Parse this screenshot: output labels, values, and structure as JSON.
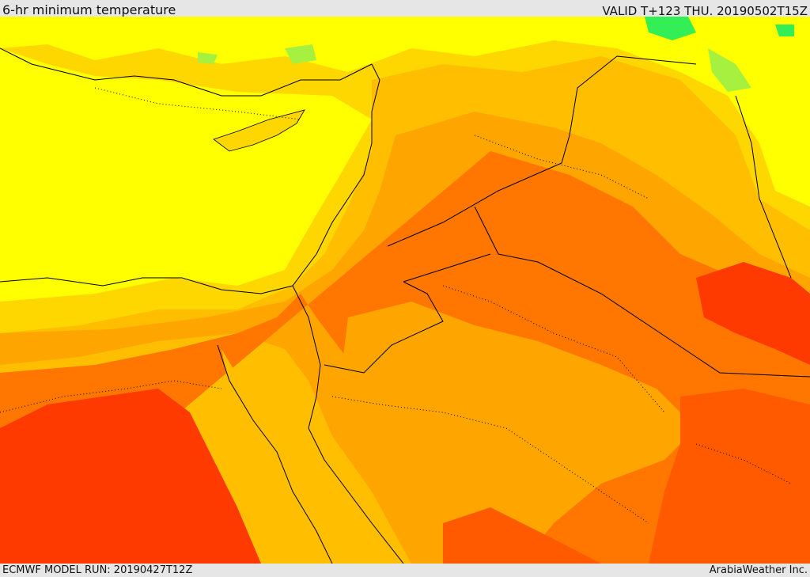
{
  "header": {
    "title": "6-hr minimum temperature",
    "valid": "VALID T+123 THU. 20190502T15Z"
  },
  "footer": {
    "model_run": "ECMWF MODEL RUN: 20190427T12Z",
    "credit": "ArabiaWeather Inc."
  },
  "map": {
    "type": "temperature-shaded-map",
    "palette": {
      "green": "#33ee55",
      "light_green": "#a6f040",
      "yellow": "#ffff00",
      "gold": "#ffd700",
      "amber": "#ffbf00",
      "orange": "#ffa500",
      "dark_orange": "#ff7700",
      "orange_red": "#ff5a00",
      "red": "#ff3a00"
    },
    "borders": "solid black national borders, dotted internal boundaries"
  }
}
